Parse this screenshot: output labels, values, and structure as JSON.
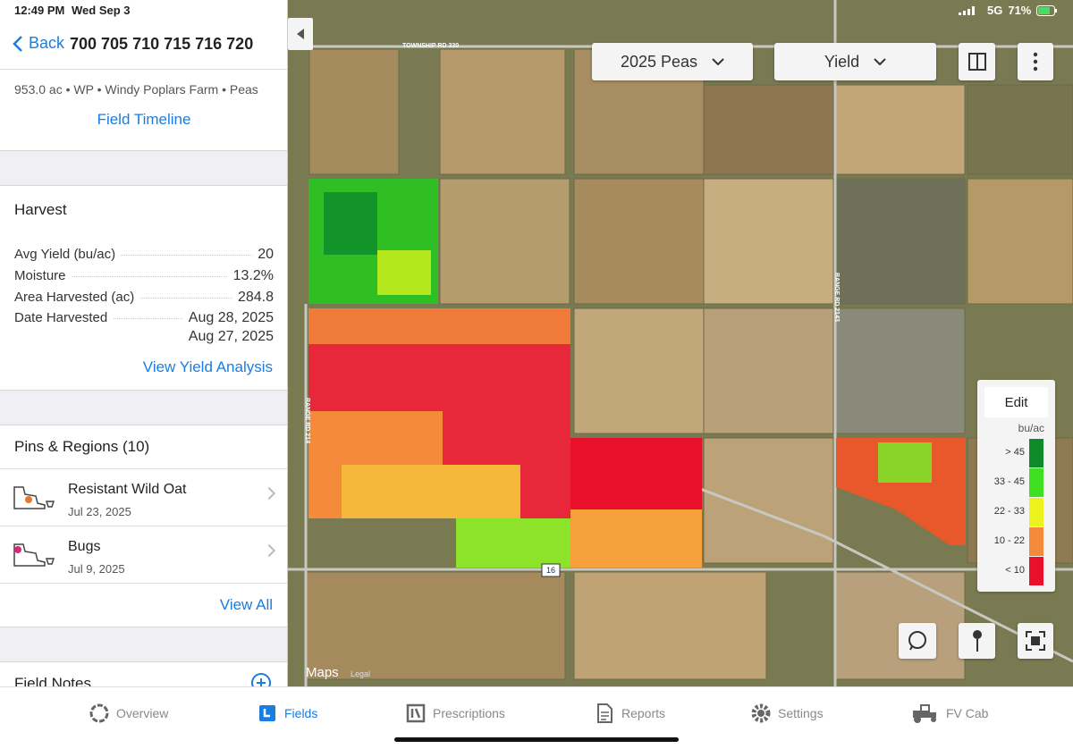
{
  "status_bar": {
    "time": "12:49 PM",
    "date": "Wed Sep 3",
    "network": "5G",
    "battery": "71%"
  },
  "nav": {
    "back": "Back",
    "title": "700 705 710 715 716 720"
  },
  "field_info": {
    "summary": "953.0 ac • WP • Windy Poplars Farm • Peas",
    "timeline_link": "Field Timeline"
  },
  "harvest": {
    "title": "Harvest",
    "rows": [
      {
        "label": "Avg Yield (bu/ac)",
        "values": [
          "20"
        ]
      },
      {
        "label": "Moisture",
        "values": [
          "13.2%"
        ]
      },
      {
        "label": "Area Harvested (ac)",
        "values": [
          "284.8"
        ]
      },
      {
        "label": "Date Harvested",
        "values": [
          "Aug 28, 2025",
          "Aug 27, 2025"
        ]
      }
    ],
    "link": "View Yield Analysis"
  },
  "pins": {
    "title": "Pins & Regions (10)",
    "items": [
      {
        "name": "Resistant Wild Oat",
        "date": "Jul 23, 2025",
        "color": "#e8772e"
      },
      {
        "name": "Bugs",
        "date": "Jul 9, 2025",
        "color": "#d6287a"
      }
    ],
    "link": "View All"
  },
  "field_notes": {
    "title": "Field Notes"
  },
  "map": {
    "season_menu": "2025 Peas",
    "layer_menu": "Yield",
    "road_labels": [
      "TOWNSHIP RD 330",
      "RANGE RD 2143",
      "RANGE RD 214"
    ],
    "highway_shield": "16",
    "attribution": "Maps",
    "legal": "Legal",
    "legend": {
      "edit": "Edit",
      "unit": "bu/ac",
      "items": [
        {
          "label": "> 45",
          "color": "#0f8a2a"
        },
        {
          "label": "33 - 45",
          "color": "#3ee01f"
        },
        {
          "label": "22 - 33",
          "color": "#ecf21e"
        },
        {
          "label": "10 - 22",
          "color": "#f58a3a"
        },
        {
          "label": "< 10",
          "color": "#e8102a"
        }
      ]
    }
  },
  "tab_bar": {
    "tabs": [
      "Overview",
      "Fields",
      "Prescriptions",
      "Reports",
      "Settings",
      "FV Cab"
    ],
    "active": "Fields"
  }
}
